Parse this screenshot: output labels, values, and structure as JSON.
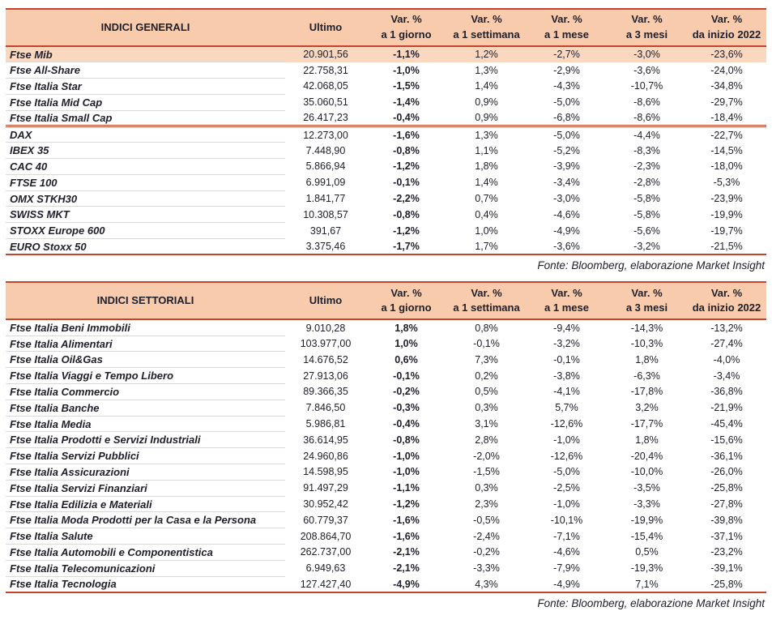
{
  "colors": {
    "accent": "#c4432b",
    "header_bg": "#f8cbad",
    "highlight_bg": "#fad8c0",
    "text": "#20202c",
    "row_line": "#d9d9d9"
  },
  "tables": [
    {
      "name": "general-indices-table",
      "columns": [
        {
          "line1": "INDICI GENERALI",
          "line2": ""
        },
        {
          "line1": "Ultimo",
          "line2": ""
        },
        {
          "line1": "Var. %",
          "line2": "a 1 giorno"
        },
        {
          "line1": "Var. %",
          "line2": "a 1 settimana"
        },
        {
          "line1": "Var. %",
          "line2": "a 1 mese"
        },
        {
          "line1": "Var. %",
          "line2": "a 3 mesi"
        },
        {
          "line1": "Var. %",
          "line2": "da inizio 2022"
        }
      ],
      "rows": [
        {
          "name": "Ftse Mib",
          "values": [
            "20.901,56",
            "-1,1%",
            "1,2%",
            "-2,7%",
            "-3,0%",
            "-23,6%"
          ],
          "highlight": true,
          "separator_after": false
        },
        {
          "name": "Ftse All-Share",
          "values": [
            "22.758,31",
            "-1,0%",
            "1,3%",
            "-2,9%",
            "-3,6%",
            "-24,0%"
          ],
          "highlight": false,
          "separator_after": false
        },
        {
          "name": "Ftse Italia Star",
          "values": [
            "42.068,05",
            "-1,5%",
            "1,4%",
            "-4,3%",
            "-10,7%",
            "-34,8%"
          ],
          "highlight": false,
          "separator_after": false
        },
        {
          "name": "Ftse Italia Mid Cap",
          "values": [
            "35.060,51",
            "-1,4%",
            "0,9%",
            "-5,0%",
            "-8,6%",
            "-29,7%"
          ],
          "highlight": false,
          "separator_after": false
        },
        {
          "name": "Ftse Italia Small Cap",
          "values": [
            "26.417,23",
            "-0,4%",
            "0,9%",
            "-6,8%",
            "-8,6%",
            "-18,4%"
          ],
          "highlight": false,
          "separator_after": true
        },
        {
          "name": "DAX",
          "values": [
            "12.273,00",
            "-1,6%",
            "1,3%",
            "-5,0%",
            "-4,4%",
            "-22,7%"
          ],
          "highlight": false,
          "separator_after": false
        },
        {
          "name": "IBEX 35",
          "values": [
            "7.448,90",
            "-0,8%",
            "1,1%",
            "-5,2%",
            "-8,3%",
            "-14,5%"
          ],
          "highlight": false,
          "separator_after": false
        },
        {
          "name": "CAC 40",
          "values": [
            "5.866,94",
            "-1,2%",
            "1,8%",
            "-3,9%",
            "-2,3%",
            "-18,0%"
          ],
          "highlight": false,
          "separator_after": false
        },
        {
          "name": "FTSE 100",
          "values": [
            "6.991,09",
            "-0,1%",
            "1,4%",
            "-3,4%",
            "-2,8%",
            "-5,3%"
          ],
          "highlight": false,
          "separator_after": false
        },
        {
          "name": "OMX STKH30",
          "values": [
            "1.841,77",
            "-2,2%",
            "0,7%",
            "-3,0%",
            "-5,8%",
            "-23,9%"
          ],
          "highlight": false,
          "separator_after": false
        },
        {
          "name": "SWISS MKT",
          "values": [
            "10.308,57",
            "-0,8%",
            "0,4%",
            "-4,6%",
            "-5,8%",
            "-19,9%"
          ],
          "highlight": false,
          "separator_after": false
        },
        {
          "name": "STOXX Europe 600",
          "values": [
            "391,67",
            "-1,2%",
            "1,0%",
            "-4,9%",
            "-5,6%",
            "-19,7%"
          ],
          "highlight": false,
          "separator_after": false
        },
        {
          "name": "EURO Stoxx 50",
          "values": [
            "3.375,46",
            "-1,7%",
            "1,7%",
            "-3,6%",
            "-3,2%",
            "-21,5%"
          ],
          "highlight": false,
          "separator_after": false
        }
      ],
      "source": "Fonte: Bloomberg, elaborazione Market Insight"
    },
    {
      "name": "sector-indices-table",
      "columns": [
        {
          "line1": "INDICI SETTORIALI",
          "line2": ""
        },
        {
          "line1": "Ultimo",
          "line2": ""
        },
        {
          "line1": "Var. %",
          "line2": "a 1 giorno"
        },
        {
          "line1": "Var. %",
          "line2": "a 1 settimana"
        },
        {
          "line1": "Var. %",
          "line2": "a 1 mese"
        },
        {
          "line1": "Var. %",
          "line2": "a 3 mesi"
        },
        {
          "line1": "Var. %",
          "line2": "da inizio 2022"
        }
      ],
      "rows": [
        {
          "name": "Ftse Italia Beni Immobili",
          "values": [
            "9.010,28",
            "1,8%",
            "0,8%",
            "-9,4%",
            "-14,3%",
            "-13,2%"
          ],
          "highlight": false,
          "separator_after": false
        },
        {
          "name": "Ftse Italia Alimentari",
          "values": [
            "103.977,00",
            "1,0%",
            "-0,1%",
            "-3,2%",
            "-10,3%",
            "-27,4%"
          ],
          "highlight": false,
          "separator_after": false
        },
        {
          "name": "Ftse Italia Oil&Gas",
          "values": [
            "14.676,52",
            "0,6%",
            "7,3%",
            "-0,1%",
            "1,8%",
            "-4,0%"
          ],
          "highlight": false,
          "separator_after": false
        },
        {
          "name": "Ftse Italia Viaggi e Tempo Libero",
          "values": [
            "27.913,06",
            "-0,1%",
            "0,2%",
            "-3,8%",
            "-6,3%",
            "-3,4%"
          ],
          "highlight": false,
          "separator_after": false
        },
        {
          "name": "Ftse Italia Commercio",
          "values": [
            "89.366,35",
            "-0,2%",
            "0,5%",
            "-4,1%",
            "-17,8%",
            "-36,8%"
          ],
          "highlight": false,
          "separator_after": false
        },
        {
          "name": "Ftse Italia Banche",
          "values": [
            "7.846,50",
            "-0,3%",
            "0,3%",
            "5,7%",
            "3,2%",
            "-21,9%"
          ],
          "highlight": false,
          "separator_after": false
        },
        {
          "name": "Ftse Italia Media",
          "values": [
            "5.986,81",
            "-0,4%",
            "3,1%",
            "-12,6%",
            "-17,7%",
            "-45,4%"
          ],
          "highlight": false,
          "separator_after": false
        },
        {
          "name": "Ftse Italia Prodotti e Servizi Industriali",
          "values": [
            "36.614,95",
            "-0,8%",
            "2,8%",
            "-1,0%",
            "1,8%",
            "-15,6%"
          ],
          "highlight": false,
          "separator_after": false
        },
        {
          "name": "Ftse Italia Servizi Pubblici",
          "values": [
            "24.960,86",
            "-1,0%",
            "-2,0%",
            "-12,6%",
            "-20,4%",
            "-36,1%"
          ],
          "highlight": false,
          "separator_after": false
        },
        {
          "name": "Ftse Italia Assicurazioni",
          "values": [
            "14.598,95",
            "-1,0%",
            "-1,5%",
            "-5,0%",
            "-10,0%",
            "-26,0%"
          ],
          "highlight": false,
          "separator_after": false
        },
        {
          "name": "Ftse Italia Servizi Finanziari",
          "values": [
            "91.497,29",
            "-1,1%",
            "0,3%",
            "-2,5%",
            "-3,5%",
            "-25,8%"
          ],
          "highlight": false,
          "separator_after": false
        },
        {
          "name": "Ftse Italia Edilizia e Materiali",
          "values": [
            "30.952,42",
            "-1,2%",
            "2,3%",
            "-1,0%",
            "-3,3%",
            "-27,8%"
          ],
          "highlight": false,
          "separator_after": false
        },
        {
          "name": "Ftse Italia Moda Prodotti per la Casa e la Persona",
          "values": [
            "60.779,37",
            "-1,6%",
            "-0,5%",
            "-10,1%",
            "-19,9%",
            "-39,8%"
          ],
          "highlight": false,
          "separator_after": false
        },
        {
          "name": "Ftse Italia Salute",
          "values": [
            "208.864,70",
            "-1,6%",
            "-2,4%",
            "-7,1%",
            "-15,4%",
            "-37,1%"
          ],
          "highlight": false,
          "separator_after": false
        },
        {
          "name": "Ftse Italia Automobili e Componentistica",
          "values": [
            "262.737,00",
            "-2,1%",
            "-0,2%",
            "-4,6%",
            "0,5%",
            "-23,2%"
          ],
          "highlight": false,
          "separator_after": false
        },
        {
          "name": "Ftse Italia Telecomunicazioni",
          "values": [
            "6.949,63",
            "-2,1%",
            "-3,3%",
            "-7,9%",
            "-19,3%",
            "-39,1%"
          ],
          "highlight": false,
          "separator_after": false
        },
        {
          "name": "Ftse Italia Tecnologia",
          "values": [
            "127.427,40",
            "-4,9%",
            "4,3%",
            "-4,9%",
            "7,1%",
            "-25,8%"
          ],
          "highlight": false,
          "separator_after": false
        }
      ],
      "source": "Fonte: Bloomberg, elaborazione Market Insight"
    }
  ]
}
